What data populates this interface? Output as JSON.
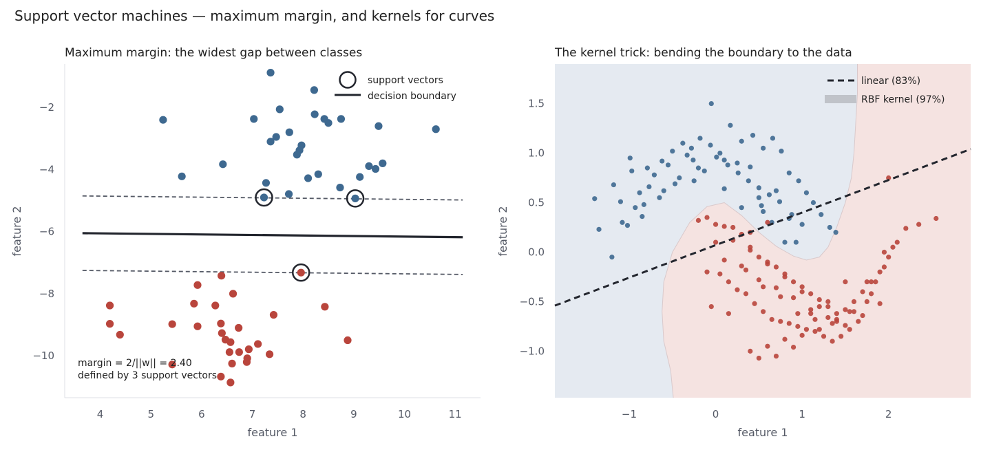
{
  "figure_title": "Support vector machines — maximum margin, and kernels for curves",
  "colors": {
    "class_blue": "#3e6990",
    "class_red": "#b9453c",
    "boundary": "#23262e",
    "margin_line": "#555a66",
    "region_blue": "#e5eaf1",
    "region_red": "#f5e3e1"
  },
  "chart_data": [
    {
      "type": "scatter",
      "title": "Maximum margin: the widest gap between classes",
      "xlabel": "feature 1",
      "ylabel": "feature 2",
      "xlim": [
        3.3,
        11.5
      ],
      "ylim": [
        -11.35,
        -0.6
      ],
      "xticks": [
        4,
        5,
        6,
        7,
        8,
        9,
        10,
        11
      ],
      "xtick_labels": [
        "4",
        "5",
        "6",
        "7",
        "8",
        "9",
        "10",
        "11"
      ],
      "yticks": [
        -2,
        -4,
        -6,
        -8,
        -10
      ],
      "ytick_labels": [
        "−2",
        "−4",
        "−6",
        "−8",
        "−10"
      ],
      "grid": false,
      "legend_position": "top-right",
      "legend": {
        "support_vectors": "support vectors",
        "decision_boundary": "decision boundary"
      },
      "annotation": "margin = 2/||w|| = 2.40\ndefined by 3 support vectors",
      "lines": {
        "decision_boundary": {
          "x": [
            3.65,
            11.15
          ],
          "y": [
            -6.05,
            -6.18
          ]
        },
        "margin_upper": {
          "x": [
            3.65,
            11.15
          ],
          "y": [
            -4.85,
            -4.98
          ]
        },
        "margin_lower": {
          "x": [
            3.65,
            11.15
          ],
          "y": [
            -7.25,
            -7.38
          ]
        }
      },
      "support_vectors": [
        {
          "x": 7.23,
          "y": -4.9
        },
        {
          "x": 9.03,
          "y": -4.93
        },
        {
          "x": 7.96,
          "y": -7.32
        }
      ],
      "series": [
        {
          "name": "class 0",
          "color": "#3e6990",
          "x": [
            7.36,
            8.22,
            7.54,
            7.03,
            5.24,
            8.23,
            8.42,
            8.75,
            8.5,
            9.49,
            10.62,
            7.73,
            7.47,
            7.36,
            7.97,
            7.93,
            7.88,
            6.42,
            5.61,
            9.3,
            9.43,
            9.57,
            8.3,
            8.1,
            9.12,
            7.27,
            8.73,
            7.72,
            7.23,
            9.03
          ],
          "y": [
            -0.88,
            -1.44,
            -2.06,
            -2.37,
            -2.4,
            -2.22,
            -2.37,
            -2.37,
            -2.5,
            -2.6,
            -2.7,
            -2.8,
            -2.95,
            -3.1,
            -3.22,
            -3.38,
            -3.52,
            -3.83,
            -4.22,
            -3.89,
            -3.98,
            -3.8,
            -4.15,
            -4.28,
            -4.24,
            -4.43,
            -4.58,
            -4.79,
            -4.9,
            -4.93
          ]
        },
        {
          "name": "class 1",
          "color": "#b9453c",
          "x": [
            7.96,
            6.39,
            5.92,
            6.62,
            4.19,
            5.85,
            6.27,
            8.43,
            7.42,
            4.19,
            5.42,
            5.92,
            6.38,
            6.73,
            4.39,
            6.4,
            6.47,
            6.57,
            7.11,
            8.88,
            6.55,
            6.93,
            6.74,
            7.34,
            6.9,
            6.6,
            5.42,
            6.89,
            6.38,
            6.57
          ],
          "y": [
            -7.32,
            -7.42,
            -7.72,
            -8.0,
            -8.38,
            -8.32,
            -8.38,
            -8.42,
            -8.68,
            -8.97,
            -8.98,
            -9.05,
            -8.96,
            -9.1,
            -9.32,
            -9.27,
            -9.48,
            -9.56,
            -9.62,
            -9.5,
            -9.88,
            -9.79,
            -9.88,
            -9.95,
            -10.08,
            -10.25,
            -10.28,
            -10.2,
            -10.67,
            -10.86
          ]
        }
      ]
    },
    {
      "type": "scatter",
      "title": "The kernel trick: bending the boundary to the data",
      "xlabel": "feature 1",
      "ylabel": "feature 2",
      "xlim": [
        -1.86,
        2.95
      ],
      "ylim": [
        -1.47,
        1.9
      ],
      "xticks": [
        -1,
        0,
        1,
        2
      ],
      "xtick_labels": [
        "−1",
        "0",
        "1",
        "2"
      ],
      "yticks": [
        1.5,
        1.0,
        0.5,
        0.0,
        -0.5,
        -1.0
      ],
      "ytick_labels": [
        "1.5",
        "1.0",
        "0.5",
        "0.0",
        "−0.5",
        "−1.0"
      ],
      "grid": false,
      "legend_position": "top-right",
      "legend": {
        "linear": "linear (83%)",
        "rbf": "RBF kernel (97%)"
      },
      "linear_boundary": {
        "x": [
          -1.86,
          2.95
        ],
        "y": [
          -0.54,
          1.04
        ]
      },
      "rbf_boundary": {
        "x": [
          -0.49,
          -0.52,
          -0.6,
          -0.62,
          -0.6,
          -0.5,
          -0.3,
          -0.1,
          0.1,
          0.3,
          0.5,
          0.7,
          0.9,
          1.05,
          1.2,
          1.3,
          1.4,
          1.5,
          1.57,
          1.6,
          1.62,
          1.64,
          1.64
        ],
        "y": [
          -1.47,
          -1.2,
          -0.9,
          -0.6,
          -0.3,
          0.0,
          0.3,
          0.46,
          0.5,
          0.37,
          0.2,
          0.06,
          -0.04,
          -0.08,
          -0.05,
          0.05,
          0.25,
          0.5,
          0.75,
          1.0,
          1.3,
          1.6,
          1.9
        ]
      },
      "series": [
        {
          "name": "class 0",
          "color": "#3e6990",
          "x": [
            -1.4,
            -1.18,
            -1.35,
            -0.99,
            -0.88,
            -0.79,
            -0.62,
            -0.5,
            -0.38,
            -0.28,
            -0.18,
            -0.06,
            0.05,
            0.17,
            0.3,
            0.43,
            0.55,
            0.66,
            0.76,
            0.85,
            0.96,
            1.05,
            1.13,
            1.22,
            1.32,
            1.39,
            -1.02,
            -1.1,
            -0.83,
            -0.71,
            -0.55,
            -0.42,
            -0.26,
            -0.13,
            0.01,
            0.14,
            0.26,
            0.38,
            0.5,
            0.62,
            0.74,
            0.88,
            1.0,
            -0.93,
            -0.85,
            -1.08,
            -0.77,
            -0.6,
            -0.47,
            -0.33,
            -0.2,
            -0.05,
            0.1,
            0.25,
            0.4,
            0.53,
            0.65,
            0.8,
            0.93,
            0.5,
            0.7,
            0.3,
            -0.97,
            -0.65,
            -0.25,
            0.1,
            0.55,
            0.85,
            -1.2
          ],
          "y": [
            0.54,
            0.68,
            0.23,
            0.95,
            0.6,
            0.85,
            0.92,
            1.02,
            1.1,
            1.05,
            1.15,
            1.08,
            1.0,
            1.28,
            1.12,
            1.18,
            1.05,
            1.15,
            1.02,
            0.8,
            0.72,
            0.6,
            0.5,
            0.38,
            0.25,
            0.2,
            0.27,
            0.51,
            0.48,
            0.78,
            0.88,
            0.75,
            0.93,
            0.82,
            0.96,
            0.88,
            0.8,
            0.72,
            0.65,
            0.58,
            0.51,
            0.38,
            0.28,
            0.45,
            0.36,
            0.3,
            0.66,
            0.62,
            0.69,
            0.98,
            0.85,
            1.5,
            0.93,
            0.9,
            0.86,
            0.47,
            0.3,
            0.1,
            0.1,
            0.55,
            0.62,
            0.45,
            0.82,
            0.55,
            0.72,
            0.64,
            0.41,
            0.34,
            -0.05
          ]
        },
        {
          "name": "class 1",
          "color": "#b9453c",
          "x": [
            -0.2,
            -0.1,
            0.0,
            0.1,
            0.2,
            0.3,
            0.4,
            0.5,
            0.6,
            0.7,
            0.8,
            0.9,
            1.0,
            1.1,
            1.2,
            1.3,
            1.4,
            1.5,
            1.6,
            1.7,
            1.8,
            1.9,
            2.0,
            2.1,
            2.2,
            2.35,
            2.55,
            -0.1,
            0.05,
            0.15,
            0.25,
            0.35,
            0.45,
            0.55,
            0.65,
            0.75,
            0.85,
            0.95,
            1.05,
            1.15,
            1.25,
            1.35,
            1.45,
            1.55,
            1.65,
            1.75,
            1.85,
            1.95,
            2.05,
            0.0,
            0.2,
            0.4,
            0.6,
            0.8,
            1.0,
            1.2,
            1.4,
            0.1,
            0.3,
            0.5,
            0.7,
            0.9,
            1.1,
            1.3,
            1.5,
            1.7,
            1.9,
            0.4,
            0.6,
            0.8,
            1.0,
            1.2,
            1.4,
            1.6,
            1.8,
            2.0,
            -0.05,
            0.15,
            0.35,
            0.55,
            0.75,
            0.95,
            1.15,
            1.35,
            1.55,
            1.75,
            1.95,
            0.5,
            0.7,
            0.9,
            1.1,
            1.3,
            1.5,
            0.4,
            0.6
          ],
          "y": [
            0.32,
            0.35,
            0.28,
            0.26,
            0.25,
            0.18,
            0.05,
            -0.05,
            -0.1,
            -0.15,
            -0.22,
            -0.3,
            -0.35,
            -0.42,
            -0.48,
            -0.55,
            -0.62,
            -0.58,
            -0.5,
            -0.4,
            -0.3,
            -0.2,
            -0.05,
            0.1,
            0.24,
            0.28,
            0.34,
            -0.2,
            -0.22,
            -0.3,
            -0.38,
            -0.42,
            -0.52,
            -0.6,
            -0.68,
            -0.7,
            -0.72,
            -0.75,
            -0.78,
            -0.8,
            -0.85,
            -0.9,
            -0.85,
            -0.78,
            -0.7,
            -0.5,
            -0.3,
            -0.15,
            0.05,
            0.1,
            0.12,
            0.02,
            -0.12,
            -0.25,
            -0.4,
            -0.55,
            -0.68,
            -0.08,
            -0.14,
            -0.28,
            -0.36,
            -0.46,
            -0.58,
            -0.66,
            -0.74,
            -0.64,
            -0.52,
            -1.0,
            -0.95,
            -0.88,
            -0.84,
            -0.78,
            -0.7,
            -0.6,
            -0.42,
            0.75,
            -0.55,
            -0.62,
            -0.18,
            -0.35,
            -0.45,
            -0.62,
            -0.68,
            -0.72,
            -0.6,
            -0.3,
            0.0,
            -1.07,
            -1.05,
            -0.96,
            -0.62,
            -0.5,
            -0.3,
            0.2,
            0.3
          ]
        }
      ]
    }
  ]
}
